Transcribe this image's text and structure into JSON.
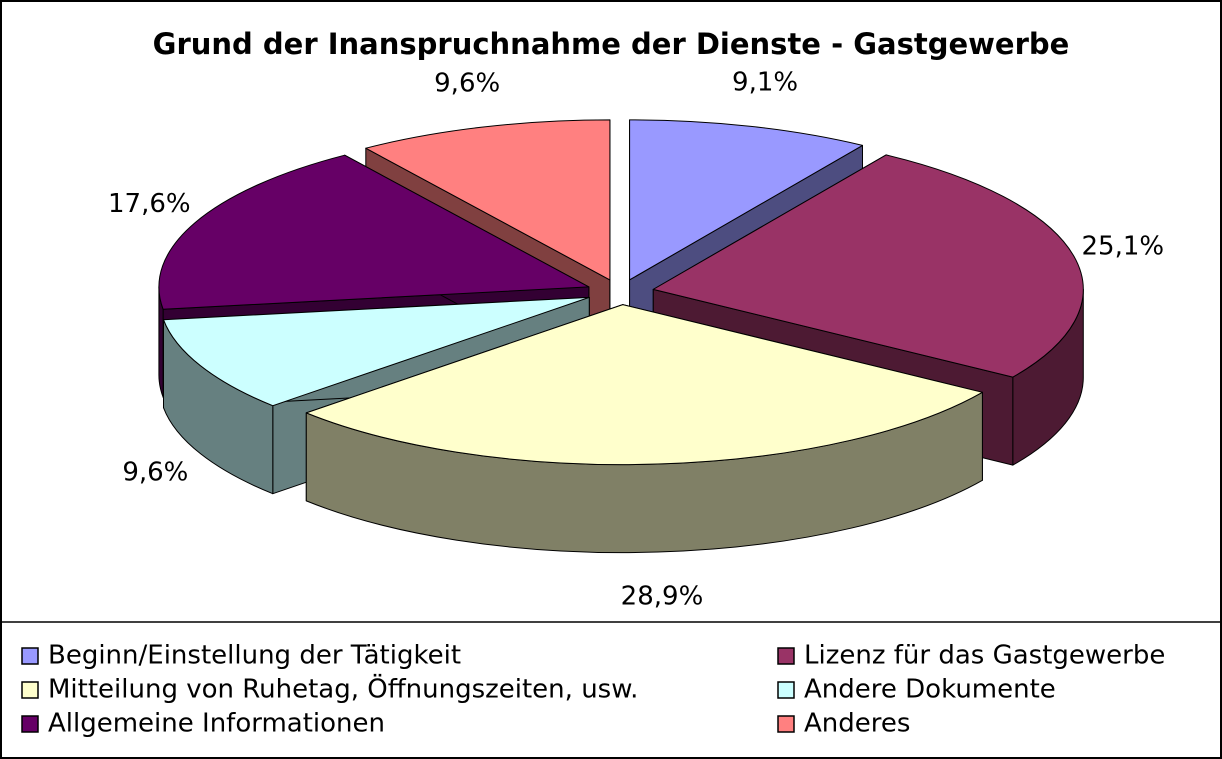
{
  "chart_data": {
    "type": "pie",
    "title": "Grund der Inanspruchnahme der Dienste - Gastgewerbe",
    "categories": [
      "Beginn/Einstellung der Tätigkeit",
      "Lizenz für das Gastgewerbe",
      "Mitteilung von Ruhetag, Öffnungszeiten, usw.",
      "Andere Dokumente",
      "Allgemeine Informationen",
      "Anderes"
    ],
    "values": [
      9.1,
      25.1,
      28.9,
      9.6,
      17.6,
      9.6
    ],
    "value_labels": [
      "9,1%",
      "25,1%",
      "28,9%",
      "9,6%",
      "17,6%",
      "9,6%"
    ],
    "colors": [
      "#9999ff",
      "#993366",
      "#ffffcc",
      "#ccffff",
      "#660066",
      "#ff8080"
    ],
    "legend": "bottom"
  }
}
